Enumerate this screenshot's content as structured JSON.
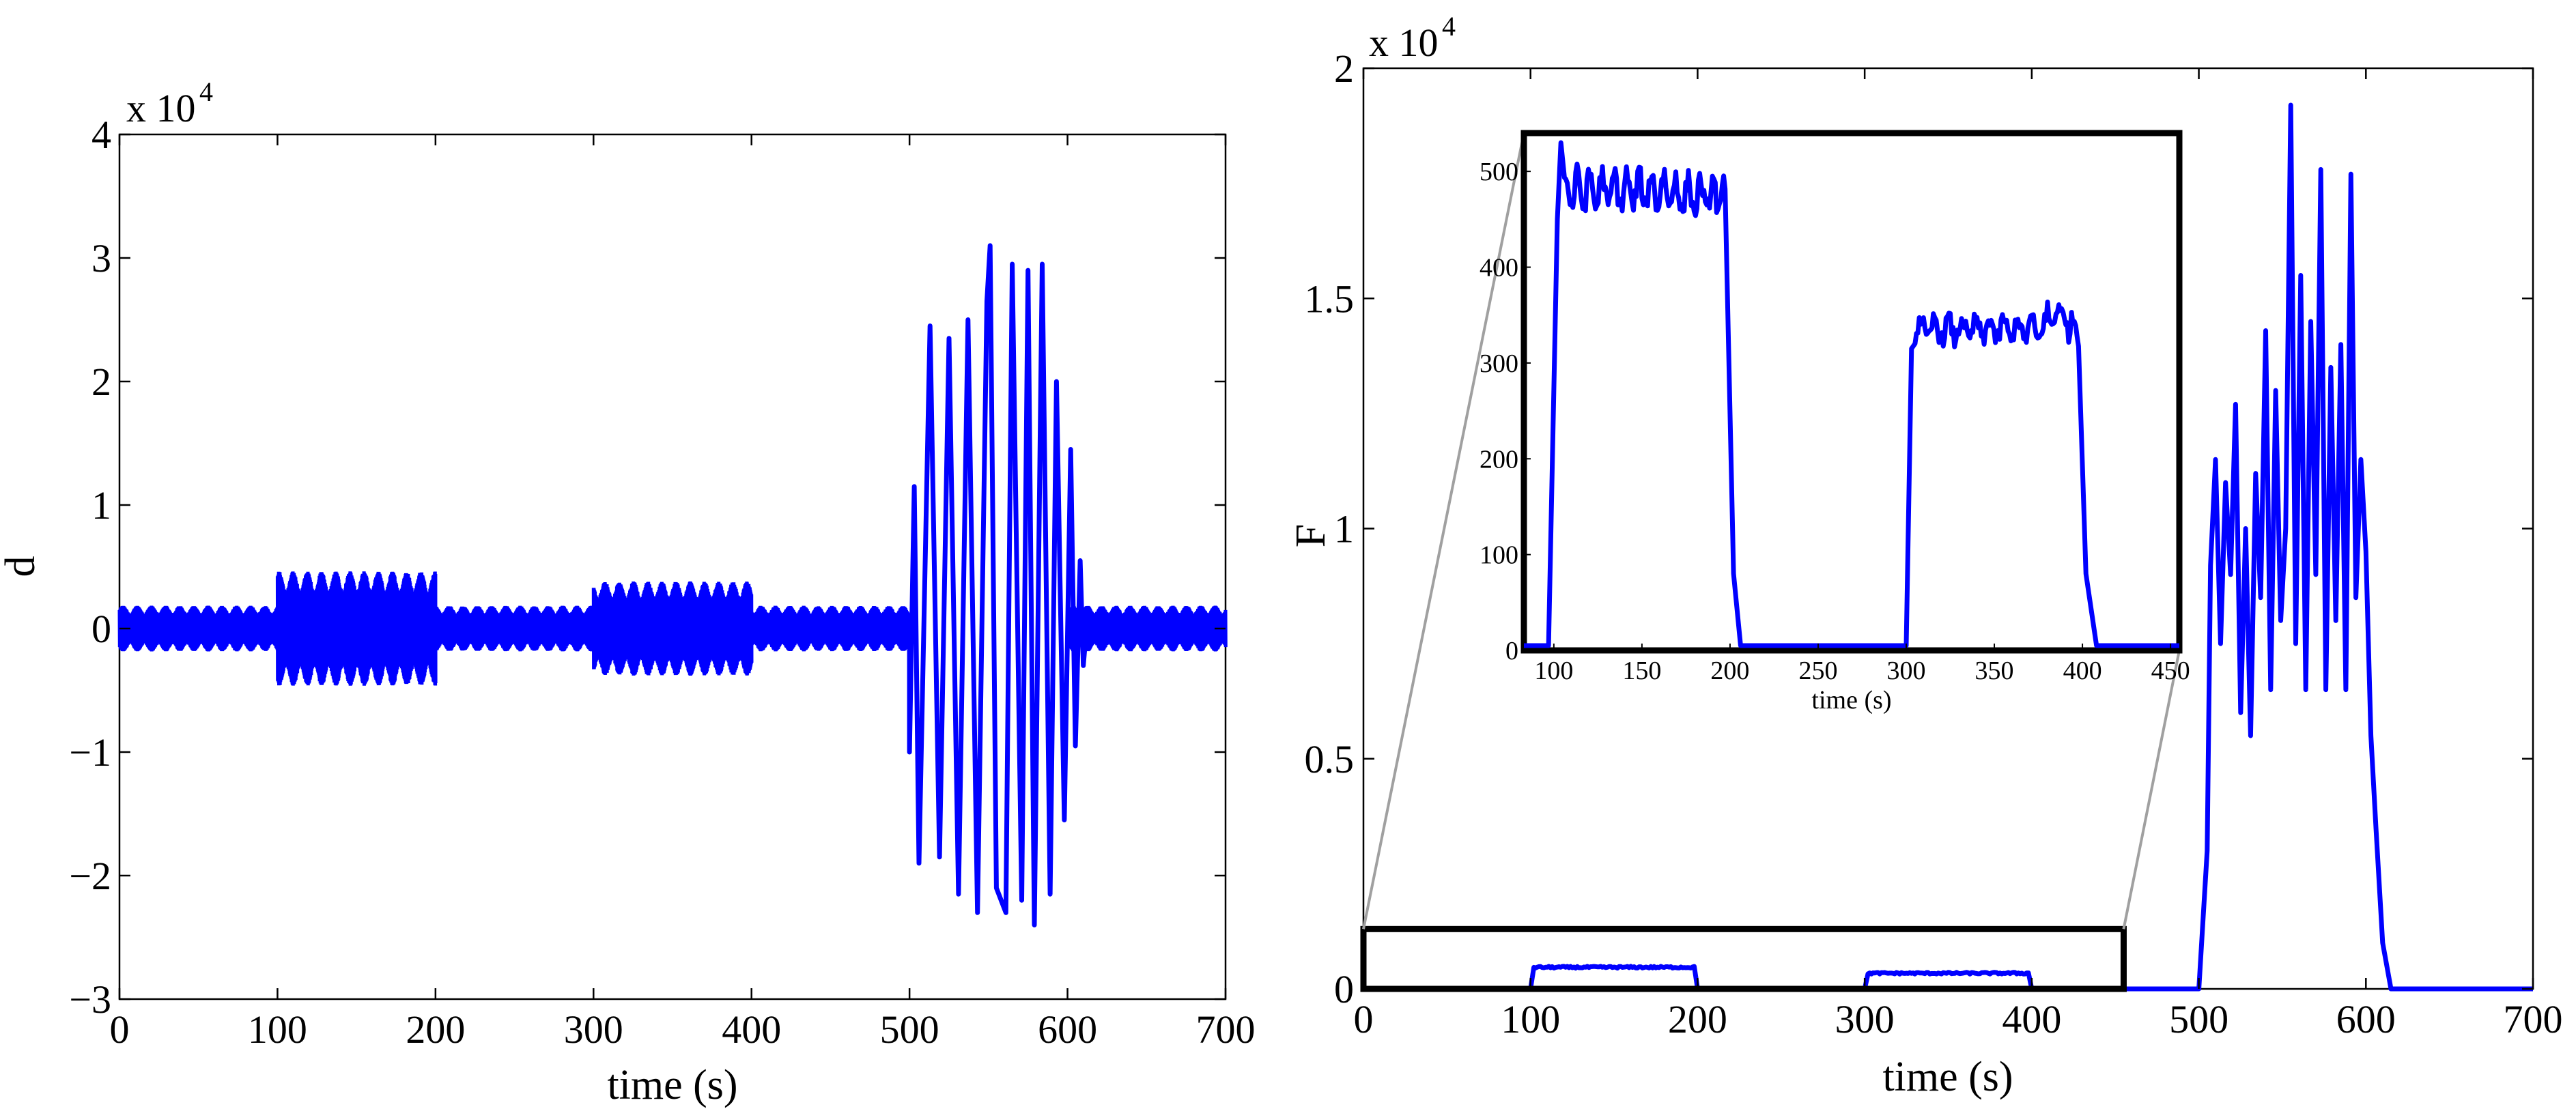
{
  "chart_data": [
    {
      "type": "line",
      "xlabel": "time (s)",
      "ylabel": "d",
      "y_multiplier": "x 10",
      "y_multiplier_exponent": "4",
      "xlim": [
        0,
        700
      ],
      "ylim": [
        -3,
        4
      ],
      "xticks": [
        "0",
        "100",
        "200",
        "300",
        "400",
        "500",
        "600",
        "700"
      ],
      "yticks": [
        "−3",
        "−2",
        "−1",
        "0",
        "1",
        "2",
        "3",
        "4"
      ],
      "line_color": "#0000ff",
      "grid": false,
      "segments": [
        {
          "t_start": 0,
          "t_end": 100,
          "kind": "band",
          "amplitude": 0.18
        },
        {
          "t_start": 100,
          "t_end": 200,
          "kind": "band",
          "amplitude": 0.45
        },
        {
          "t_start": 200,
          "t_end": 300,
          "kind": "band",
          "amplitude": 0.18
        },
        {
          "t_start": 300,
          "t_end": 400,
          "kind": "band",
          "amplitude": 0.37
        },
        {
          "t_start": 400,
          "t_end": 500,
          "kind": "band",
          "amplitude": 0.18
        },
        {
          "t_start": 600,
          "t_end": 700,
          "kind": "band",
          "amplitude": 0.18
        }
      ],
      "oscillation": {
        "t_start": 500,
        "t_end": 610,
        "peaks": [
          {
            "t": 500,
            "y": -1.0
          },
          {
            "t": 503,
            "y": 1.15
          },
          {
            "t": 506,
            "y": -1.9
          },
          {
            "t": 513,
            "y": 2.45
          },
          {
            "t": 519,
            "y": -1.85
          },
          {
            "t": 525,
            "y": 2.35
          },
          {
            "t": 531,
            "y": -2.15
          },
          {
            "t": 537,
            "y": 2.5
          },
          {
            "t": 543,
            "y": -2.3
          },
          {
            "t": 549,
            "y": 2.65
          },
          {
            "t": 555,
            "y": -2.1
          },
          {
            "t": 551,
            "y": 3.1
          },
          {
            "t": 561,
            "y": -2.3
          },
          {
            "t": 565,
            "y": 2.95
          },
          {
            "t": 571,
            "y": -2.2
          },
          {
            "t": 575,
            "y": 2.9
          },
          {
            "t": 579,
            "y": -2.4
          },
          {
            "t": 584,
            "y": 2.95
          },
          {
            "t": 589,
            "y": -2.15
          },
          {
            "t": 593,
            "y": 2.0
          },
          {
            "t": 598,
            "y": -1.55
          },
          {
            "t": 602,
            "y": 1.45
          },
          {
            "t": 605,
            "y": -0.95
          },
          {
            "t": 608,
            "y": 0.55
          },
          {
            "t": 610,
            "y": -0.3
          }
        ]
      }
    },
    {
      "type": "line",
      "xlabel": "time (s)",
      "ylabel": "F",
      "y_multiplier": "x 10",
      "y_multiplier_exponent": "4",
      "xlim": [
        0,
        700
      ],
      "ylim": [
        0,
        2
      ],
      "xticks": [
        "0",
        "100",
        "200",
        "300",
        "400",
        "500",
        "600",
        "700"
      ],
      "yticks": [
        "0",
        "0.5",
        "1",
        "1.5",
        "2"
      ],
      "line_color": "#0000ff",
      "grid": false,
      "plateaus": [
        {
          "t_start": 100,
          "t_end": 200,
          "value": 0.047
        },
        {
          "t_start": 300,
          "t_end": 400,
          "value": 0.034
        }
      ],
      "burst": {
        "t_start": 500,
        "t_end": 615,
        "points": [
          [
            500,
            0.0
          ],
          [
            505,
            0.3
          ],
          [
            507,
            0.92
          ],
          [
            510,
            1.15
          ],
          [
            513,
            0.75
          ],
          [
            516,
            1.1
          ],
          [
            519,
            0.9
          ],
          [
            522,
            1.27
          ],
          [
            525,
            0.6
          ],
          [
            528,
            1.0
          ],
          [
            531,
            0.55
          ],
          [
            534,
            1.12
          ],
          [
            537,
            0.85
          ],
          [
            540,
            1.43
          ],
          [
            543,
            0.65
          ],
          [
            546,
            1.3
          ],
          [
            549,
            0.8
          ],
          [
            552,
            1.0
          ],
          [
            555,
            1.92
          ],
          [
            558,
            0.75
          ],
          [
            561,
            1.55
          ],
          [
            564,
            0.65
          ],
          [
            567,
            1.45
          ],
          [
            570,
            0.9
          ],
          [
            573,
            1.78
          ],
          [
            576,
            0.65
          ],
          [
            579,
            1.35
          ],
          [
            582,
            0.8
          ],
          [
            585,
            1.4
          ],
          [
            588,
            0.65
          ],
          [
            591,
            1.77
          ],
          [
            594,
            0.85
          ],
          [
            597,
            1.15
          ],
          [
            600,
            0.95
          ],
          [
            603,
            0.55
          ],
          [
            606,
            0.35
          ],
          [
            610,
            0.1
          ],
          [
            615,
            0.0
          ]
        ]
      },
      "inset": {
        "xlabel": "time (s)",
        "xlim": [
          83,
          455
        ],
        "ylim": [
          0,
          540
        ],
        "xticks": [
          "100",
          "150",
          "200",
          "250",
          "300",
          "350",
          "400",
          "450"
        ],
        "yticks": [
          "0",
          "100",
          "200",
          "300",
          "400",
          "500"
        ],
        "zoom_region": {
          "xlim": [
            0,
            455
          ],
          "ylim": [
            0,
            0.13
          ]
        },
        "plateaus": [
          {
            "t_start": 100,
            "t_end": 200,
            "value": 480,
            "first_peak": 530
          },
          {
            "t_start": 300,
            "t_end": 400,
            "value": 335,
            "late_peak": 375
          }
        ]
      }
    }
  ]
}
